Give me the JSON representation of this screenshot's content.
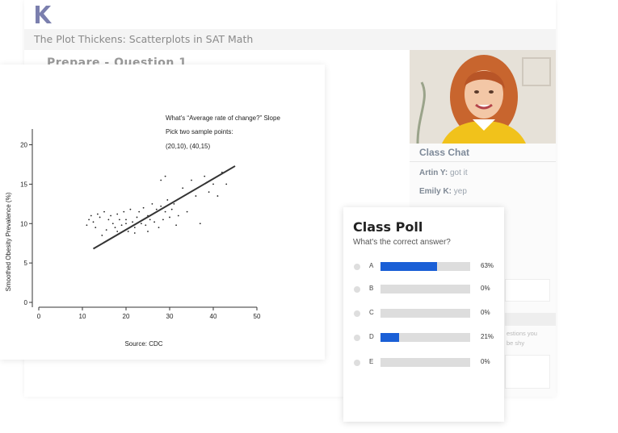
{
  "app": {
    "lesson_title": "The Plot Thickens: Scatterplots in SAT Math",
    "question_heading": "Prepare - Question 1",
    "brand_color": "#7b7fae"
  },
  "chat": {
    "title": "Class Chat",
    "messages": [
      {
        "user": "Artin Y:",
        "text": "got it"
      },
      {
        "user": "Emily K:",
        "text": "yep"
      }
    ],
    "hint_line1": "estions you",
    "hint_line2": "be shy"
  },
  "plot": {
    "note_line1": "What's “Average rate of change?” Slope",
    "note_line2": "Pick two sample points:",
    "note_line3": "(20,10), (40,15)",
    "source": "Source: CDC",
    "chart_data": {
      "type": "scatter",
      "ylabel": "Smoothed Obesity Prevalence (%)",
      "xlabel": "",
      "xlim": [
        0,
        50
      ],
      "ylim": [
        0,
        22
      ],
      "xticks": [
        0,
        10,
        20,
        30,
        40,
        50
      ],
      "yticks": [
        0,
        5,
        10,
        15,
        20
      ],
      "trendline": {
        "x": [
          12.5,
          45
        ],
        "y": [
          6.8,
          17.3
        ]
      },
      "points": [
        [
          11,
          9.8
        ],
        [
          11.5,
          10.5
        ],
        [
          12,
          11
        ],
        [
          12.5,
          10.2
        ],
        [
          13,
          9.5
        ],
        [
          13.5,
          11.2
        ],
        [
          14,
          10.8
        ],
        [
          14.5,
          8.5
        ],
        [
          15,
          11.5
        ],
        [
          15.5,
          9.2
        ],
        [
          16,
          10.5
        ],
        [
          16.5,
          11
        ],
        [
          17,
          10
        ],
        [
          17.5,
          9.5
        ],
        [
          18,
          11.2
        ],
        [
          18.5,
          10.5
        ],
        [
          19,
          9.8
        ],
        [
          19.5,
          11.5
        ],
        [
          20,
          10.5
        ],
        [
          20.5,
          9
        ],
        [
          21,
          11.8
        ],
        [
          21.5,
          10.2
        ],
        [
          22,
          9.5
        ],
        [
          22.5,
          10.8
        ],
        [
          23,
          11.5
        ],
        [
          23.5,
          10
        ],
        [
          24,
          12
        ],
        [
          24.5,
          9.8
        ],
        [
          25,
          11
        ],
        [
          25.5,
          10.5
        ],
        [
          26,
          12.5
        ],
        [
          26.5,
          10.2
        ],
        [
          27,
          11.8
        ],
        [
          27.5,
          9.5
        ],
        [
          28,
          12.2
        ],
        [
          28.5,
          10.5
        ],
        [
          29,
          11.5
        ],
        [
          29.5,
          13
        ],
        [
          30,
          10.8
        ],
        [
          30.5,
          11.8
        ],
        [
          31,
          12.5
        ],
        [
          31.5,
          9.8
        ],
        [
          32,
          11
        ],
        [
          33,
          14.5
        ],
        [
          34,
          11.5
        ],
        [
          35,
          15.5
        ],
        [
          36,
          13.5
        ],
        [
          37,
          10
        ],
        [
          38,
          16
        ],
        [
          39,
          14
        ],
        [
          40,
          15
        ],
        [
          41,
          13.5
        ],
        [
          42,
          16.5
        ],
        [
          43,
          15
        ],
        [
          28,
          15.5
        ],
        [
          29,
          16
        ],
        [
          18,
          9
        ],
        [
          22,
          8.8
        ],
        [
          25,
          9
        ],
        [
          20,
          10
        ]
      ]
    }
  },
  "poll": {
    "title": "Class Poll",
    "subtitle": "What's the correct answer?",
    "accent_color": "#1a5fd6",
    "options": [
      {
        "letter": "A",
        "percent_label": "63%",
        "fraction": 0.63
      },
      {
        "letter": "B",
        "percent_label": "0%",
        "fraction": 0
      },
      {
        "letter": "C",
        "percent_label": "0%",
        "fraction": 0
      },
      {
        "letter": "D",
        "percent_label": "21%",
        "fraction": 0.21
      },
      {
        "letter": "E",
        "percent_label": "0%",
        "fraction": 0
      }
    ]
  }
}
